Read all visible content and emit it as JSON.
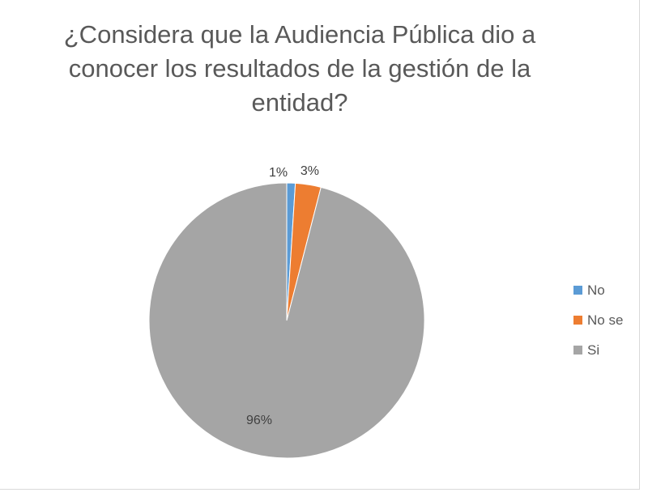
{
  "chart_data": {
    "type": "pie",
    "title": "¿Considera que la Audiencia Pública dio a conocer los resultados de la gestión de la entidad?",
    "categories": [
      "No",
      "No se",
      "Si"
    ],
    "values": [
      1,
      3,
      96
    ],
    "value_labels": [
      "1%",
      "3%",
      "96%"
    ],
    "colors": [
      "#5B9BD5",
      "#ED7D31",
      "#A5A5A5"
    ],
    "legend": "right"
  }
}
